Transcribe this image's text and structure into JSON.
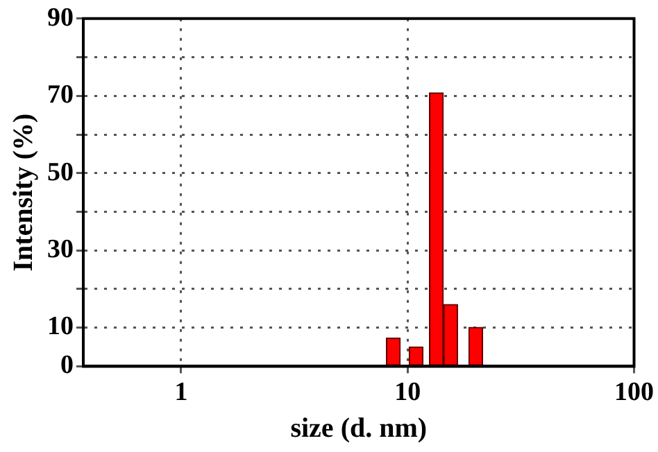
{
  "chart_data": {
    "type": "bar",
    "xlabel": "size (d. nm)",
    "ylabel": "Intensity (%)",
    "x": [
      8.65,
      10.9,
      13.4,
      15.5,
      20.0
    ],
    "values": [
      7.3,
      5.0,
      70.8,
      16.0,
      10.1
    ],
    "color": "#ff0000",
    "log": "x",
    "xlim": [
      0.37,
      100
    ],
    "xticks": [
      1,
      10,
      100
    ],
    "ylim": [
      0,
      90
    ],
    "yticks": [
      0,
      10,
      {
        "value": 20,
        "label": null
      },
      30,
      {
        "value": 40,
        "label": null
      },
      50,
      {
        "value": 60,
        "label": null
      },
      70,
      {
        "value": 80,
        "label": null
      },
      90
    ],
    "grid": true,
    "legend": false
  }
}
